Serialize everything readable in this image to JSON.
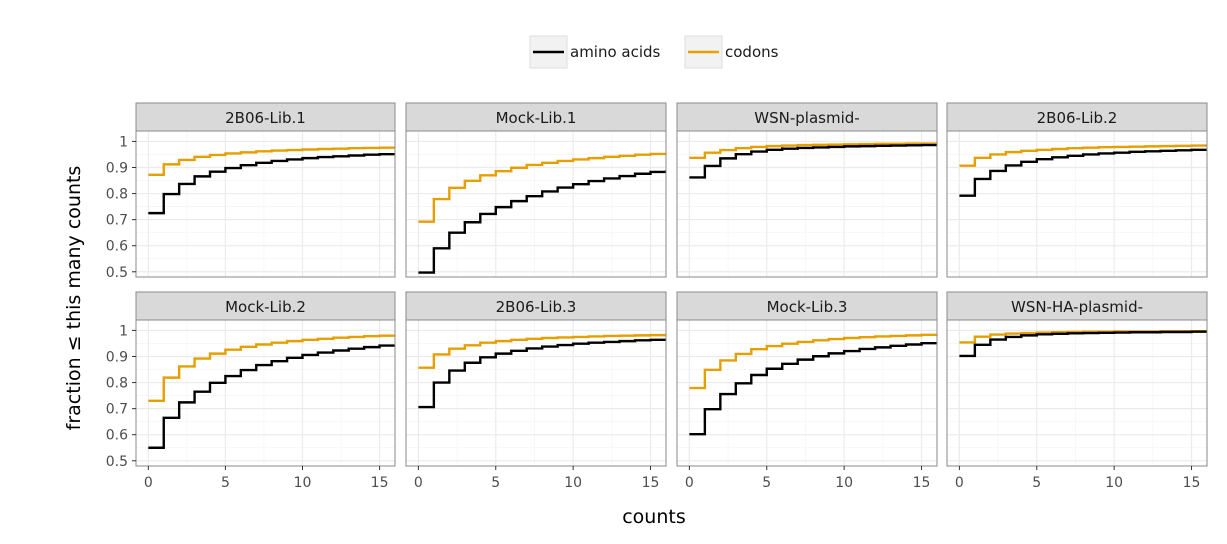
{
  "chart_data": {
    "type": "line",
    "xlabel": "counts",
    "ylabel": "fraction  ≤ this many counts",
    "xlim": [
      -0.8,
      16
    ],
    "xticks": [
      0,
      5,
      10,
      15
    ],
    "yticks": [
      0.5,
      0.6,
      0.7,
      0.8,
      0.9,
      1.0
    ],
    "ytick_labels": [
      "0.5",
      "0.6",
      "0.7",
      "0.8",
      "0.9",
      "1"
    ],
    "ylims": [
      [
        0.48,
        1.04
      ],
      [
        0.48,
        1.04
      ]
    ],
    "legend": {
      "position": "top",
      "entries": [
        {
          "label": "amino acids",
          "color": "#000000"
        },
        {
          "label": "codons",
          "color": "#E69F00"
        }
      ]
    },
    "x": [
      0,
      1,
      2,
      3,
      4,
      5,
      6,
      7,
      8,
      9,
      10,
      11,
      12,
      13,
      14,
      15,
      16
    ],
    "panels": [
      {
        "title": "2B06-Lib.1",
        "amino_acids": [
          0.725,
          0.798,
          0.837,
          0.866,
          0.884,
          0.898,
          0.909,
          0.918,
          0.925,
          0.931,
          0.936,
          0.94,
          0.943,
          0.946,
          0.949,
          0.951,
          0.953
        ],
        "codons": [
          0.872,
          0.912,
          0.929,
          0.941,
          0.948,
          0.954,
          0.958,
          0.962,
          0.965,
          0.967,
          0.969,
          0.971,
          0.972,
          0.974,
          0.975,
          0.976,
          0.977
        ]
      },
      {
        "title": "Mock-Lib.1",
        "amino_acids": [
          0.497,
          0.59,
          0.65,
          0.69,
          0.722,
          0.748,
          0.771,
          0.79,
          0.808,
          0.823,
          0.836,
          0.848,
          0.858,
          0.867,
          0.876,
          0.883,
          0.889
        ],
        "codons": [
          0.692,
          0.779,
          0.822,
          0.849,
          0.87,
          0.886,
          0.899,
          0.91,
          0.918,
          0.925,
          0.931,
          0.936,
          0.941,
          0.945,
          0.949,
          0.952,
          0.955
        ]
      },
      {
        "title": "WSN-plasmid-",
        "amino_acids": [
          0.862,
          0.906,
          0.935,
          0.951,
          0.961,
          0.968,
          0.972,
          0.975,
          0.977,
          0.979,
          0.981,
          0.982,
          0.983,
          0.984,
          0.985,
          0.986,
          0.987
        ],
        "codons": [
          0.937,
          0.957,
          0.967,
          0.974,
          0.979,
          0.982,
          0.984,
          0.986,
          0.987,
          0.988,
          0.989,
          0.99,
          0.991,
          0.991,
          0.992,
          0.992,
          0.993
        ]
      },
      {
        "title": "2B06-Lib.2",
        "amino_acids": [
          0.792,
          0.856,
          0.887,
          0.908,
          0.922,
          0.932,
          0.939,
          0.945,
          0.95,
          0.954,
          0.957,
          0.96,
          0.962,
          0.964,
          0.966,
          0.968,
          0.97
        ],
        "codons": [
          0.907,
          0.937,
          0.95,
          0.959,
          0.964,
          0.968,
          0.971,
          0.974,
          0.976,
          0.978,
          0.979,
          0.98,
          0.981,
          0.982,
          0.983,
          0.984,
          0.985
        ]
      },
      {
        "title": "Mock-Lib.2",
        "amino_acids": [
          0.55,
          0.665,
          0.724,
          0.765,
          0.799,
          0.825,
          0.848,
          0.867,
          0.882,
          0.895,
          0.906,
          0.915,
          0.923,
          0.93,
          0.936,
          0.942,
          0.946
        ],
        "codons": [
          0.73,
          0.819,
          0.862,
          0.892,
          0.911,
          0.926,
          0.937,
          0.946,
          0.953,
          0.959,
          0.964,
          0.968,
          0.972,
          0.975,
          0.978,
          0.98,
          0.982
        ]
      },
      {
        "title": "2B06-Lib.3",
        "amino_acids": [
          0.706,
          0.8,
          0.846,
          0.876,
          0.897,
          0.911,
          0.922,
          0.931,
          0.938,
          0.944,
          0.949,
          0.953,
          0.956,
          0.959,
          0.962,
          0.964,
          0.966
        ],
        "codons": [
          0.857,
          0.908,
          0.93,
          0.943,
          0.953,
          0.959,
          0.964,
          0.968,
          0.971,
          0.973,
          0.975,
          0.977,
          0.979,
          0.98,
          0.981,
          0.982,
          0.983
        ]
      },
      {
        "title": "Mock-Lib.3",
        "amino_acids": [
          0.602,
          0.698,
          0.756,
          0.797,
          0.829,
          0.853,
          0.872,
          0.888,
          0.901,
          0.912,
          0.921,
          0.929,
          0.935,
          0.941,
          0.946,
          0.951,
          0.955
        ],
        "codons": [
          0.779,
          0.849,
          0.885,
          0.91,
          0.928,
          0.94,
          0.949,
          0.956,
          0.962,
          0.967,
          0.971,
          0.974,
          0.977,
          0.979,
          0.981,
          0.983,
          0.984
        ]
      },
      {
        "title": "WSN-HA-plasmid-",
        "amino_acids": [
          0.902,
          0.945,
          0.965,
          0.975,
          0.981,
          0.985,
          0.987,
          0.989,
          0.99,
          0.991,
          0.992,
          0.993,
          0.993,
          0.994,
          0.994,
          0.995,
          0.995
        ],
        "codons": [
          0.954,
          0.976,
          0.984,
          0.988,
          0.99,
          0.992,
          0.993,
          0.994,
          0.995,
          0.995,
          0.996,
          0.996,
          0.996,
          0.997,
          0.997,
          0.997,
          0.997
        ]
      }
    ]
  },
  "colors": {
    "amino_acids": "#000000",
    "codons": "#E69F00",
    "strip_fill": "#d9d9d9",
    "strip_border": "#8a8a8a",
    "grid_major": "#ebebeb",
    "grid_minor": "#f4f4f4",
    "panel_border": "#8a8a8a",
    "tick_text": "#4d4d4d"
  }
}
